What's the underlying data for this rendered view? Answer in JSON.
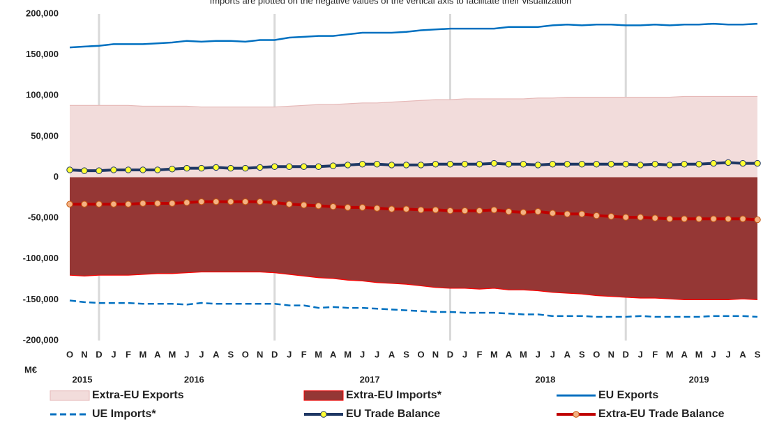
{
  "chart_data": {
    "type": "line",
    "subtitle": "Imports are plotted on the negative values of the vertical axis to facilitate their visualization",
    "y_axis_label": "M€",
    "categories": [
      "O",
      "N",
      "D",
      "J",
      "F",
      "M",
      "A",
      "M",
      "J",
      "J",
      "A",
      "S",
      "O",
      "N",
      "D",
      "J",
      "F",
      "M",
      "A",
      "M",
      "J",
      "J",
      "A",
      "S",
      "O",
      "N",
      "D",
      "J",
      "F",
      "M",
      "A",
      "M",
      "J",
      "J",
      "A",
      "S",
      "O",
      "N",
      "D",
      "J",
      "F",
      "M",
      "A",
      "M",
      "J",
      "J",
      "A",
      "S"
    ],
    "years": [
      "2015",
      "2016",
      "2017",
      "2018",
      "2019"
    ],
    "ylim": [
      -200000,
      200000
    ],
    "yticks": [
      {
        "value": -200000,
        "label": "-200,000"
      },
      {
        "value": -150000,
        "label": "-150,000"
      },
      {
        "value": -100000,
        "label": "-100,000"
      },
      {
        "value": -50000,
        "label": "-50,000"
      },
      0,
      {
        "value": 50000,
        "label": "50,000"
      },
      {
        "value": 100000,
        "label": "100,000"
      },
      {
        "value": 150000,
        "label": "150,000"
      },
      {
        "value": 200000,
        "label": "200,000"
      }
    ],
    "series": [
      {
        "name": "Extra-EU Exports",
        "kind": "area",
        "color": "#f2dcdb",
        "edge": "#e6b9b8",
        "values": [
          88000,
          88000,
          88000,
          88000,
          88000,
          87000,
          87000,
          87000,
          87000,
          86000,
          86000,
          86000,
          86000,
          86000,
          86000,
          87000,
          88000,
          89000,
          89000,
          90000,
          91000,
          91000,
          92000,
          93000,
          94000,
          95000,
          95000,
          96000,
          96000,
          96000,
          96000,
          96000,
          97000,
          97000,
          98000,
          98000,
          98000,
          98000,
          98000,
          98000,
          98000,
          98000,
          99000,
          99000,
          99000,
          99000,
          99000,
          99000
        ]
      },
      {
        "name": "Extra-EU Imports*",
        "kind": "area",
        "color": "#953735",
        "edge": "#ff0000",
        "values": [
          -120000,
          -121000,
          -120000,
          -120000,
          -120000,
          -119000,
          -118000,
          -118000,
          -117000,
          -116000,
          -116000,
          -116000,
          -116000,
          -116000,
          -117000,
          -119000,
          -121000,
          -123000,
          -124000,
          -126000,
          -127000,
          -129000,
          -130000,
          -131000,
          -133000,
          -135000,
          -136000,
          -136000,
          -137000,
          -136000,
          -138000,
          -138000,
          -139000,
          -141000,
          -142000,
          -143000,
          -145000,
          -146000,
          -147000,
          -148000,
          -148000,
          -149000,
          -150000,
          -150000,
          -150000,
          -150000,
          -149000,
          -150000
        ]
      },
      {
        "name": "EU Exports",
        "kind": "line",
        "color": "#0070c0",
        "values": [
          159000,
          160000,
          161000,
          163000,
          163000,
          163000,
          164000,
          165000,
          167000,
          166000,
          167000,
          167000,
          166000,
          168000,
          168000,
          171000,
          172000,
          173000,
          173000,
          175000,
          177000,
          177000,
          177000,
          178000,
          180000,
          181000,
          182000,
          182000,
          182000,
          182000,
          184000,
          184000,
          184000,
          186000,
          187000,
          186000,
          187000,
          187000,
          186000,
          186000,
          187000,
          186000,
          187000,
          187000,
          188000,
          187000,
          187000,
          188000
        ]
      },
      {
        "name": "UE Imports*",
        "kind": "line",
        "dashed": true,
        "color": "#0070c0",
        "values": [
          -151000,
          -153000,
          -154000,
          -154000,
          -154000,
          -155000,
          -155000,
          -155000,
          -156000,
          -154000,
          -155000,
          -155000,
          -155000,
          -155000,
          -155000,
          -157000,
          -157000,
          -160000,
          -159000,
          -160000,
          -160000,
          -161000,
          -162000,
          -163000,
          -164000,
          -165000,
          -165000,
          -166000,
          -166000,
          -166000,
          -167000,
          -168000,
          -168000,
          -170000,
          -170000,
          -170000,
          -171000,
          -171000,
          -171000,
          -170000,
          -171000,
          -171000,
          -171000,
          -171000,
          -170000,
          -170000,
          -170000,
          -171000
        ]
      },
      {
        "name": "EU Trade Balance",
        "kind": "line",
        "color": "#1f3864",
        "marker": "#ffff33",
        "marker_edge": "#1f3864",
        "values": [
          9000,
          8000,
          8000,
          9000,
          9000,
          9000,
          9000,
          10000,
          11000,
          11000,
          12000,
          11000,
          11000,
          12000,
          13000,
          13000,
          13000,
          13000,
          14000,
          15000,
          16000,
          16000,
          15000,
          15000,
          15000,
          16000,
          16000,
          16000,
          16000,
          17000,
          16000,
          16000,
          15000,
          16000,
          16000,
          16000,
          16000,
          16000,
          16000,
          15000,
          16000,
          15000,
          16000,
          16000,
          17000,
          18000,
          17000,
          17000
        ]
      },
      {
        "name": "Extra-EU Trade Balance",
        "kind": "line",
        "color": "#c00000",
        "marker": "#f4b183",
        "marker_edge": "#c55a11",
        "values": [
          -33000,
          -33000,
          -33000,
          -33000,
          -33000,
          -32000,
          -32000,
          -32000,
          -31000,
          -30000,
          -30000,
          -30000,
          -30000,
          -30000,
          -31000,
          -33000,
          -34000,
          -35000,
          -36000,
          -37000,
          -37000,
          -38000,
          -39000,
          -39000,
          -40000,
          -40000,
          -41000,
          -41000,
          -41000,
          -40000,
          -42000,
          -43000,
          -42000,
          -44000,
          -45000,
          -45000,
          -47000,
          -48000,
          -49000,
          -49000,
          -50000,
          -51000,
          -51000,
          -51000,
          -51000,
          -51000,
          -51000,
          -52000
        ]
      }
    ]
  }
}
